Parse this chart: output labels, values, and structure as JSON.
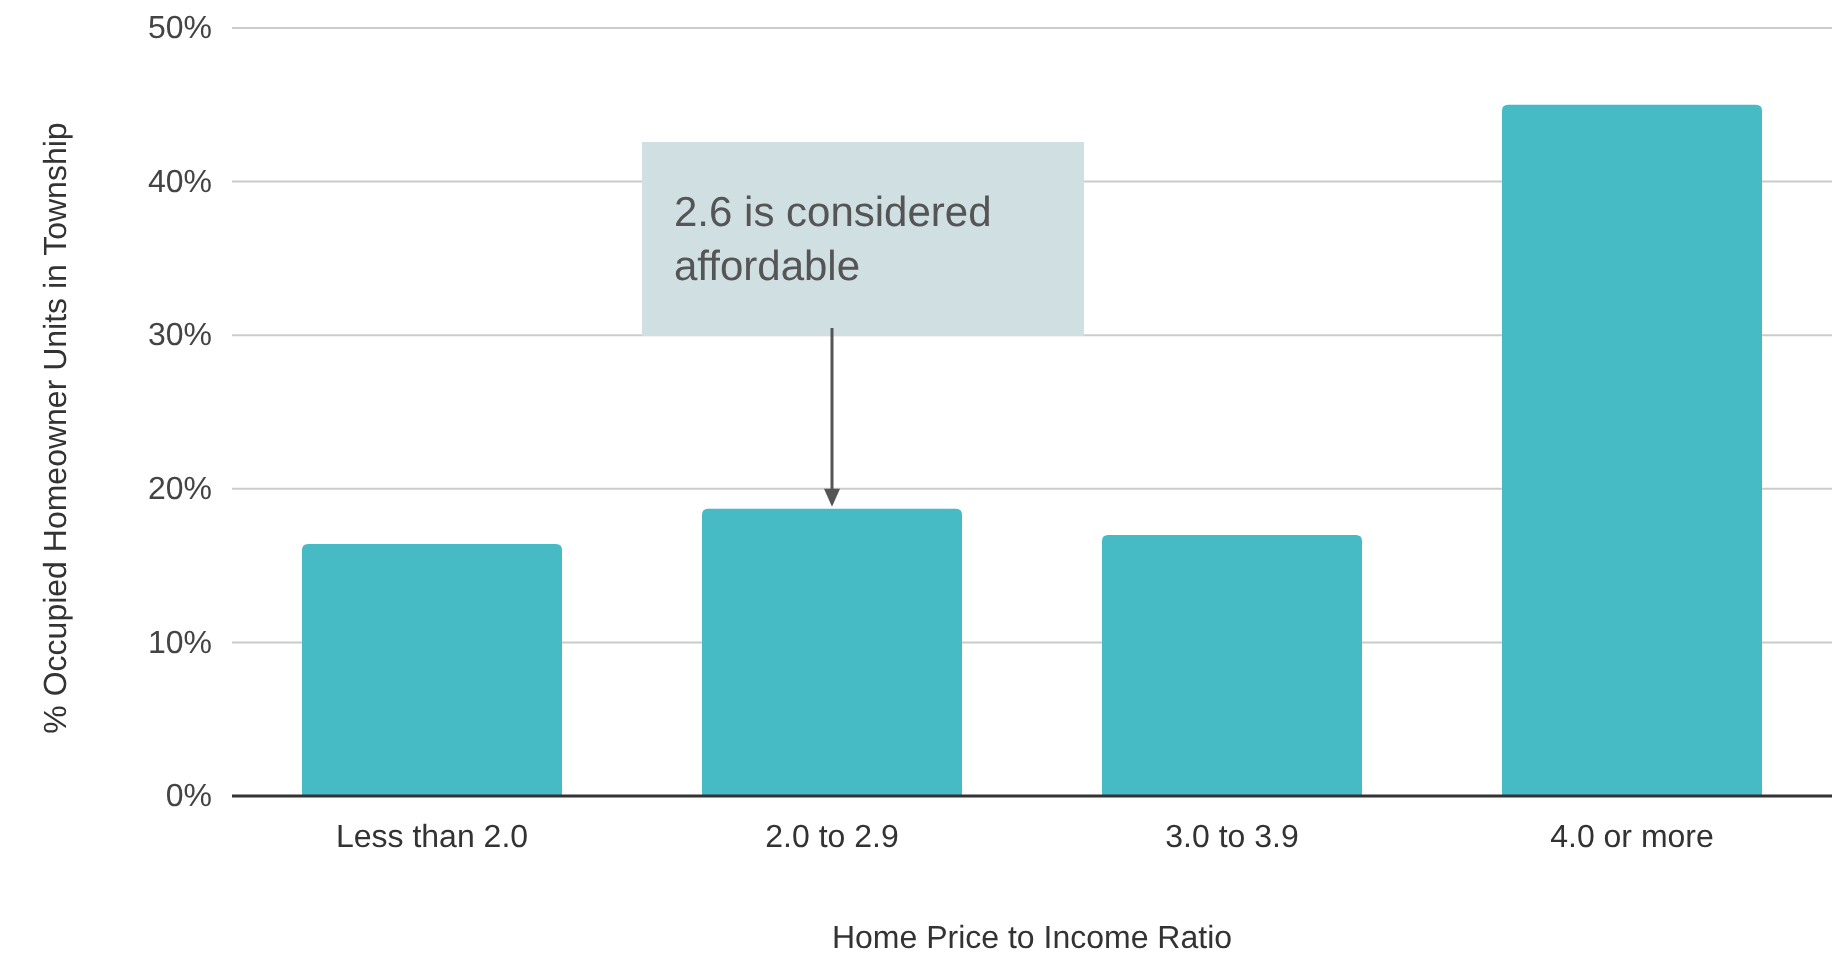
{
  "chart_data": {
    "type": "bar",
    "xlabel": "Home Price to Income Ratio",
    "ylabel": "% Occupied Homeowner Units in Township",
    "categories": [
      "Less than 2.0",
      "2.0 to 2.9",
      "3.0 to 3.9",
      "4.0 or more"
    ],
    "values": [
      16.4,
      18.7,
      17.0,
      45.0
    ],
    "color": "#46bbc6",
    "ylim": [
      0,
      50
    ],
    "yticks": [
      {
        "value": 0,
        "label": "0%"
      },
      {
        "value": 10,
        "label": "10%"
      },
      {
        "value": 20,
        "label": "20%"
      },
      {
        "value": 30,
        "label": "30%"
      },
      {
        "value": 40,
        "label": "40%"
      },
      {
        "value": 50,
        "label": "50%"
      }
    ],
    "grid": "y",
    "annotations": [
      {
        "text": "2.6 is considered affordable",
        "x": "2.0 to 2.9",
        "y": 18.7
      }
    ]
  }
}
